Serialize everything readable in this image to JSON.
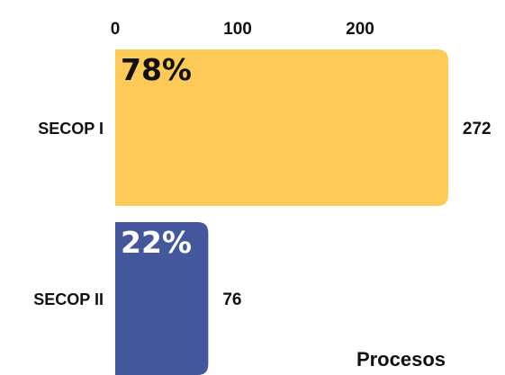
{
  "chart_data": {
    "type": "bar",
    "orientation": "horizontal",
    "categories": [
      "SECOP I",
      "SECOP II"
    ],
    "values": [
      272,
      76
    ],
    "percent_labels": [
      "78%",
      "22%"
    ],
    "xlabel": "Procesos",
    "ylabel": "",
    "xticks": [
      0,
      100,
      200
    ],
    "xlim": [
      0,
      290
    ],
    "axis_position": "top",
    "grid": false,
    "colors": [
      "#FECA57",
      "#44569C"
    ],
    "percent_label_colors": [
      "#111111",
      "#FFFFFF"
    ]
  }
}
